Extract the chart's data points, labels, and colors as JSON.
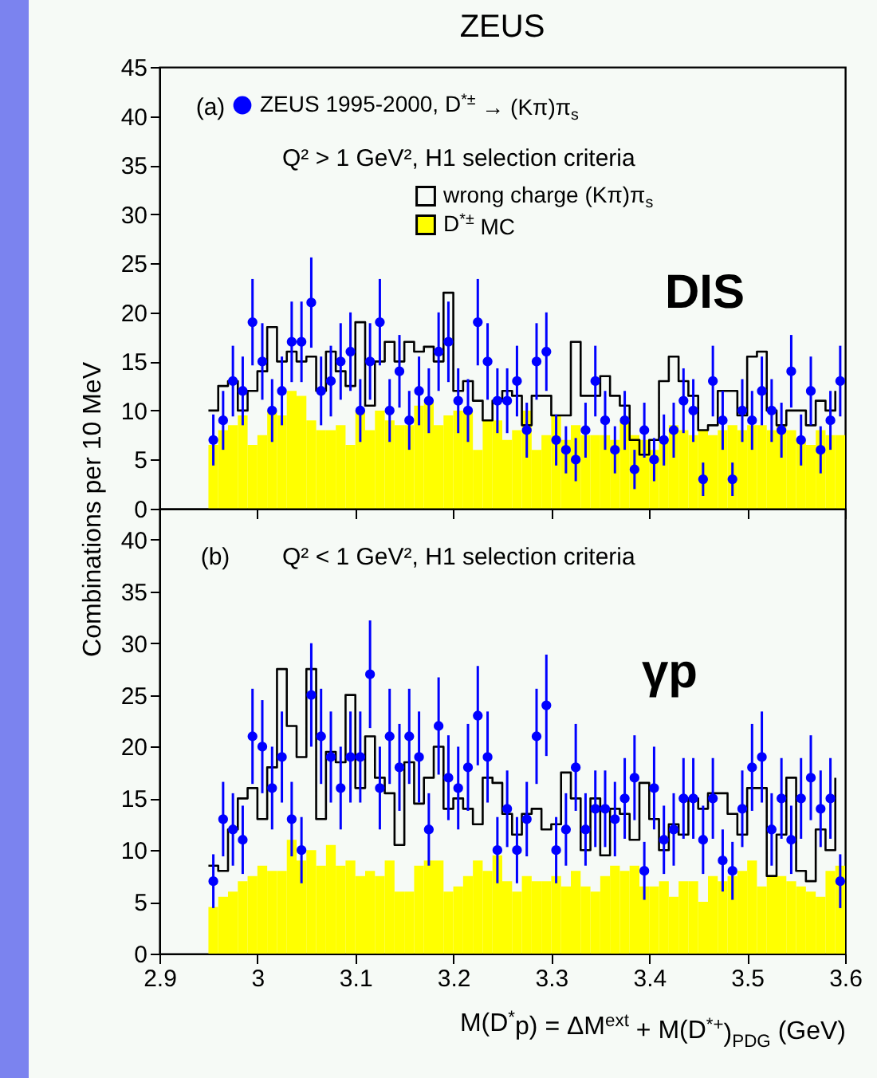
{
  "chart_data": [
    {
      "type": "histogram",
      "title": "ZEUS",
      "ylabel": "Combinations per 10 MeV",
      "xlim": [
        2.9,
        3.6
      ],
      "xticks": [
        2.9,
        3,
        3.1,
        3.2,
        3.3,
        3.4,
        3.5,
        3.6
      ],
      "ylim": [
        0,
        45
      ],
      "yticks": [
        0,
        5,
        10,
        15,
        20,
        25,
        30,
        35,
        40,
        45
      ],
      "tick_labels": "y",
      "legend": "top left",
      "annotations": [
        "(a)",
        "Q² > 1 GeV², H1 selection criteria",
        "DIS"
      ],
      "bins": [
        2.95,
        2.96,
        2.97,
        2.98,
        2.99,
        3.0,
        3.01,
        3.02,
        3.03,
        3.04,
        3.05,
        3.06,
        3.07,
        3.08,
        3.09,
        3.1,
        3.11,
        3.12,
        3.13,
        3.14,
        3.15,
        3.16,
        3.17,
        3.18,
        3.19,
        3.2,
        3.21,
        3.22,
        3.23,
        3.24,
        3.25,
        3.26,
        3.27,
        3.28,
        3.29,
        3.3,
        3.31,
        3.32,
        3.33,
        3.34,
        3.35,
        3.36,
        3.37,
        3.38,
        3.39,
        3.4,
        3.41,
        3.42,
        3.43,
        3.44,
        3.45,
        3.46,
        3.47,
        3.48,
        3.49,
        3.5,
        3.51,
        3.52,
        3.53,
        3.54,
        3.55,
        3.56,
        3.57,
        3.58,
        3.59,
        3.6
      ],
      "series": [
        {
          "name": "D$^{*±}$ MC",
          "type": "histogram",
          "color": "#ffff00",
          "values": [
            6.5,
            8,
            8.5,
            9.5,
            6.5,
            7.5,
            10,
            9.5,
            12,
            11.5,
            9,
            8,
            8,
            8.5,
            6.5,
            10,
            8,
            10,
            9,
            8.5,
            8.5,
            10.5,
            11,
            8.5,
            9.5,
            10,
            10,
            6,
            9,
            9,
            7,
            8,
            10,
            6,
            7.5,
            9.5,
            7,
            8.5,
            7.5,
            7.5,
            7.5,
            7,
            9,
            7.5,
            7,
            6,
            7,
            8.5,
            8,
            7.5,
            8,
            7.5,
            8,
            8.5,
            8,
            8.5,
            8.5,
            8,
            8.5,
            8,
            7,
            6.5,
            8,
            7.5,
            7.5
          ]
        },
        {
          "name": "wrong charge (Kπ)π$_{s}$",
          "type": "step",
          "color": "#000000",
          "x": [
            2.95,
            2.96,
            2.97,
            2.98,
            2.99,
            3.0,
            3.01,
            3.02,
            3.03,
            3.04,
            3.05,
            3.06,
            3.07,
            3.08,
            3.09,
            3.1,
            3.11,
            3.12,
            3.13,
            3.14,
            3.15,
            3.16,
            3.17,
            3.18,
            3.19,
            3.2,
            3.21,
            3.22,
            3.23,
            3.24,
            3.25,
            3.26,
            3.27,
            3.28,
            3.29,
            3.3,
            3.31,
            3.32,
            3.33,
            3.34,
            3.35,
            3.36,
            3.37,
            3.38,
            3.39,
            3.4,
            3.41,
            3.42,
            3.43,
            3.44,
            3.45,
            3.46,
            3.47,
            3.48,
            3.49,
            3.5,
            3.51,
            3.52,
            3.53,
            3.54,
            3.55,
            3.56,
            3.57,
            3.58,
            3.59
          ],
          "values": [
            10,
            12.5,
            13,
            10,
            12,
            14,
            18.5,
            15,
            16,
            15,
            15.5,
            12,
            16,
            14,
            12.5,
            19,
            10.5,
            15,
            17,
            15,
            17,
            16,
            16.5,
            15,
            22,
            12,
            13,
            11,
            9,
            11,
            12,
            11.5,
            8.5,
            11.5,
            11.5,
            9.5,
            9.5,
            17,
            11.5,
            11.5,
            13.5,
            11.5,
            10.5,
            7,
            5.5,
            7,
            13,
            15.5,
            13,
            11.5,
            8,
            8.5,
            12,
            12,
            9.5,
            15.5,
            16,
            10,
            8.5,
            10,
            10,
            8.5,
            11,
            10,
            12
          ]
        },
        {
          "name": "ZEUS 1995-2000, D$^{*±}$ → (Kπ)π$_{s}$",
          "type": "scatter",
          "color": "#0000ff",
          "marker": "circle",
          "x": [
            2.955,
            2.965,
            2.975,
            2.985,
            2.995,
            3.005,
            3.015,
            3.025,
            3.035,
            3.045,
            3.055,
            3.065,
            3.075,
            3.085,
            3.095,
            3.105,
            3.115,
            3.125,
            3.135,
            3.145,
            3.155,
            3.165,
            3.175,
            3.185,
            3.195,
            3.205,
            3.215,
            3.225,
            3.235,
            3.245,
            3.255,
            3.265,
            3.275,
            3.285,
            3.295,
            3.305,
            3.315,
            3.325,
            3.335,
            3.345,
            3.355,
            3.365,
            3.375,
            3.385,
            3.395,
            3.405,
            3.415,
            3.425,
            3.435,
            3.445,
            3.455,
            3.465,
            3.475,
            3.485,
            3.495,
            3.505,
            3.515,
            3.525,
            3.535,
            3.545,
            3.555,
            3.565,
            3.575,
            3.585,
            3.595
          ],
          "values": [
            7,
            9,
            13,
            12,
            19,
            15,
            10,
            12,
            17,
            17,
            21,
            12,
            13,
            15,
            16,
            10,
            15,
            19,
            10,
            14,
            9,
            12,
            11,
            16,
            17,
            11,
            10,
            19,
            15,
            11,
            11,
            13,
            8,
            15,
            16,
            7,
            6,
            5,
            8,
            13,
            9,
            6,
            9,
            4,
            8,
            5,
            7,
            8,
            11,
            10,
            3,
            13,
            9,
            3,
            10,
            9,
            12,
            10,
            8,
            14,
            7,
            12,
            6,
            9,
            13
          ],
          "errors": [
            2.6,
            3,
            3.6,
            3.5,
            4.4,
            3.9,
            3.2,
            3.5,
            4.1,
            4.1,
            4.6,
            3.5,
            3.6,
            3.9,
            4,
            3.2,
            3.9,
            4.4,
            3.2,
            3.7,
            3,
            3.5,
            3.3,
            4,
            4.1,
            3.3,
            3.2,
            4.4,
            3.9,
            3.3,
            3.3,
            3.6,
            2.8,
            3.9,
            4,
            2.6,
            2.4,
            2.2,
            2.8,
            3.6,
            3,
            2.4,
            3,
            2,
            2.8,
            2.2,
            2.6,
            2.8,
            3.3,
            3.2,
            1.7,
            3.6,
            3,
            1.7,
            3.2,
            3,
            3.5,
            3.2,
            2.8,
            3.7,
            2.6,
            3.5,
            2.4,
            3,
            3.6
          ]
        }
      ]
    },
    {
      "type": "histogram",
      "xlabel": "M(D$^{*}$p) = ΔM$^{ext}$ + M(D$^{*+}$)$_{PDG}$ (GeV)",
      "xlim": [
        2.9,
        3.6
      ],
      "xticks": [
        2.9,
        3,
        3.1,
        3.2,
        3.3,
        3.4,
        3.5,
        3.6
      ],
      "ylim": [
        0,
        43
      ],
      "yticks": [
        0,
        5,
        10,
        15,
        20,
        25,
        30,
        35,
        40
      ],
      "annotations": [
        "(b)",
        "Q² < 1 GeV², H1 selection criteria",
        "γp"
      ],
      "bins": [
        2.95,
        2.96,
        2.97,
        2.98,
        2.99,
        3.0,
        3.01,
        3.02,
        3.03,
        3.04,
        3.05,
        3.06,
        3.07,
        3.08,
        3.09,
        3.1,
        3.11,
        3.12,
        3.13,
        3.14,
        3.15,
        3.16,
        3.17,
        3.18,
        3.19,
        3.2,
        3.21,
        3.22,
        3.23,
        3.24,
        3.25,
        3.26,
        3.27,
        3.28,
        3.29,
        3.3,
        3.31,
        3.32,
        3.33,
        3.34,
        3.35,
        3.36,
        3.37,
        3.38,
        3.39,
        3.4,
        3.41,
        3.42,
        3.43,
        3.44,
        3.45,
        3.46,
        3.47,
        3.48,
        3.49,
        3.5,
        3.51,
        3.52,
        3.53,
        3.54,
        3.55,
        3.56,
        3.57,
        3.58,
        3.59,
        3.6
      ],
      "series": [
        {
          "type": "histogram",
          "color": "#ffff00",
          "values": [
            4.5,
            5.5,
            6,
            7,
            7.5,
            8.5,
            8,
            8,
            11,
            9,
            10,
            8.5,
            10.5,
            8.5,
            9,
            7.5,
            8,
            7.5,
            9,
            6,
            6,
            8.5,
            9,
            9,
            6,
            6.5,
            7.5,
            9,
            8,
            9.5,
            7,
            6,
            7.5,
            7,
            7,
            7.5,
            6.5,
            8,
            6.5,
            6,
            7.5,
            8.5,
            8,
            8.5,
            6.5,
            6.5,
            7,
            5.5,
            7,
            7,
            5,
            7.5,
            7,
            7.5,
            8,
            9,
            6.5,
            7.5,
            7.5,
            7,
            6.5,
            6,
            5.5,
            8,
            8.5
          ]
        },
        {
          "type": "step",
          "color": "#000000",
          "x": [
            2.95,
            2.96,
            2.97,
            2.98,
            2.99,
            3.0,
            3.01,
            3.02,
            3.03,
            3.04,
            3.05,
            3.06,
            3.07,
            3.08,
            3.09,
            3.1,
            3.11,
            3.12,
            3.13,
            3.14,
            3.15,
            3.16,
            3.17,
            3.18,
            3.19,
            3.2,
            3.21,
            3.22,
            3.23,
            3.24,
            3.25,
            3.26,
            3.27,
            3.28,
            3.29,
            3.3,
            3.31,
            3.32,
            3.33,
            3.34,
            3.35,
            3.36,
            3.37,
            3.38,
            3.39,
            3.4,
            3.41,
            3.42,
            3.43,
            3.44,
            3.45,
            3.46,
            3.47,
            3.48,
            3.49,
            3.5,
            3.51,
            3.52,
            3.53,
            3.54,
            3.55,
            3.56,
            3.57,
            3.58,
            3.59
          ],
          "values": [
            8.5,
            8,
            12,
            15,
            16,
            13,
            18,
            27.5,
            22,
            19,
            27.5,
            13,
            19.5,
            18.5,
            25,
            16,
            21,
            17,
            15.5,
            10.5,
            18.5,
            14.5,
            17,
            20,
            14,
            15,
            14,
            12.5,
            17,
            16.5,
            13.5,
            11.5,
            13.5,
            14,
            12,
            12.5,
            17.5,
            15,
            10,
            15,
            9.5,
            14,
            13.5,
            11,
            16.5,
            13,
            10,
            12.5,
            11.5,
            15,
            14,
            15.5,
            15.5,
            13.5,
            11.5,
            16,
            16,
            7.5,
            11.5,
            17,
            8,
            7,
            12,
            10,
            17
          ]
        },
        {
          "type": "scatter",
          "color": "#0000ff",
          "marker": "circle",
          "x": [
            2.955,
            2.965,
            2.975,
            2.985,
            2.995,
            3.005,
            3.015,
            3.025,
            3.035,
            3.045,
            3.055,
            3.065,
            3.075,
            3.085,
            3.095,
            3.105,
            3.115,
            3.125,
            3.135,
            3.145,
            3.155,
            3.165,
            3.175,
            3.185,
            3.195,
            3.205,
            3.215,
            3.225,
            3.235,
            3.245,
            3.255,
            3.265,
            3.275,
            3.285,
            3.295,
            3.305,
            3.315,
            3.325,
            3.335,
            3.345,
            3.355,
            3.365,
            3.375,
            3.385,
            3.395,
            3.405,
            3.415,
            3.425,
            3.435,
            3.445,
            3.455,
            3.465,
            3.475,
            3.485,
            3.495,
            3.505,
            3.515,
            3.525,
            3.535,
            3.545,
            3.555,
            3.565,
            3.575,
            3.585,
            3.595
          ],
          "values": [
            7,
            13,
            12,
            11,
            21,
            20,
            16,
            19,
            13,
            10,
            25,
            21,
            19,
            16,
            19,
            19,
            27,
            16,
            21,
            18,
            21,
            19,
            12,
            22,
            17,
            16,
            18,
            23,
            19,
            10,
            14,
            10,
            13,
            21,
            24,
            10,
            12,
            18,
            12,
            14,
            14,
            13,
            15,
            17,
            8,
            16,
            11,
            12,
            15,
            15,
            11,
            15,
            9,
            8,
            14,
            18,
            19,
            12,
            15,
            11,
            15,
            17,
            14,
            15,
            7
          ],
          "errors": [
            2.6,
            3.6,
            3.5,
            3.3,
            4.6,
            4.5,
            4,
            4.4,
            3.6,
            3.2,
            5,
            4.6,
            4.4,
            4,
            4.4,
            4.4,
            5.2,
            4,
            4.6,
            4.2,
            4.6,
            4.4,
            3.5,
            4.7,
            4.1,
            4,
            4.2,
            4.8,
            4.4,
            3.2,
            3.7,
            3.2,
            3.6,
            4.6,
            4.9,
            3.2,
            3.5,
            4.2,
            3.5,
            3.7,
            3.7,
            3.6,
            3.9,
            4.1,
            2.8,
            4,
            3.3,
            3.5,
            3.9,
            3.9,
            3.3,
            3.9,
            3,
            2.8,
            3.7,
            4.2,
            4.4,
            3.5,
            3.9,
            3.3,
            3.9,
            4.1,
            3.7,
            3.9,
            2.6
          ]
        }
      ]
    }
  ]
}
